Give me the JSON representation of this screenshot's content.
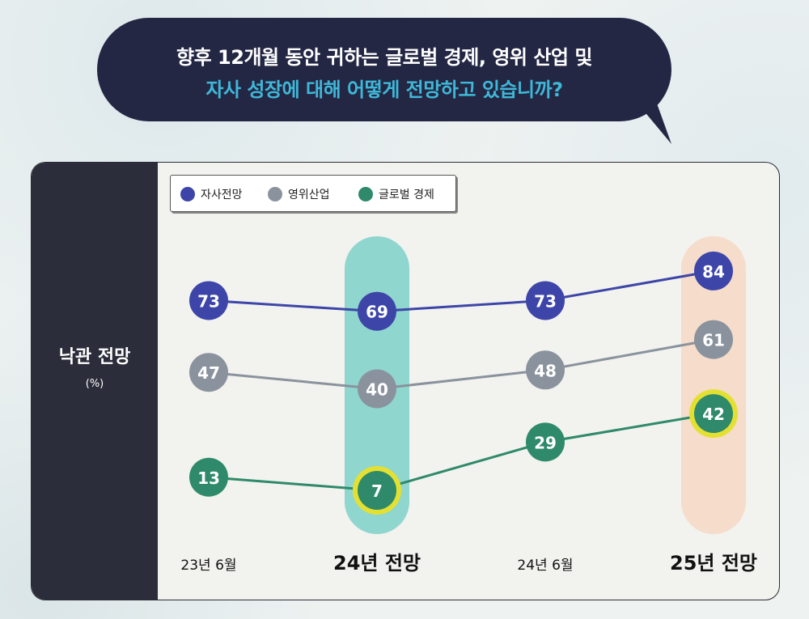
{
  "question": {
    "line1": "향후 12개월 동안 귀하는 글로벌 경제, 영위 산업 및",
    "line2": "자사 성장에 대해 어떻게 전망하고 있습니까?"
  },
  "colors": {
    "company": "#3d46a8",
    "industry": "#8a939d",
    "global": "#2e8a6a",
    "highlight_24": "#8fd6cf",
    "highlight_25": "#f6dccb",
    "ring": "#e4e032"
  },
  "chart_data": {
    "type": "line",
    "ylabel": "낙관 전망",
    "yunit": "(%)",
    "categories": [
      "23년 6월",
      "24년 전망",
      "24년 6월",
      "25년 전망"
    ],
    "highlighted_categories": [
      "24년 전망",
      "25년 전망"
    ],
    "legend_placement": "top-left",
    "series": [
      {
        "name": "자사전망",
        "values": [
          73,
          69,
          73,
          84
        ]
      },
      {
        "name": "영위산업",
        "values": [
          47,
          40,
          48,
          61
        ]
      },
      {
        "name": "글로벌 경제",
        "values": [
          13,
          7,
          29,
          42
        ]
      }
    ]
  }
}
